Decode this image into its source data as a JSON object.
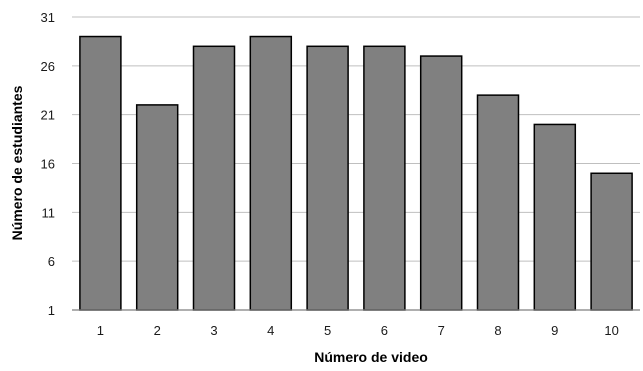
{
  "chart_data": {
    "type": "bar",
    "title": "",
    "xlabel": "Número de video",
    "ylabel": "Número de estudiantes",
    "categories": [
      "1",
      "2",
      "3",
      "4",
      "5",
      "6",
      "7",
      "8",
      "9",
      "10"
    ],
    "values": [
      29,
      22,
      28,
      29,
      28,
      28,
      27,
      23,
      20,
      15
    ],
    "ylim": [
      1,
      31
    ],
    "yticks": [
      "1",
      "6",
      "11",
      "16",
      "21",
      "26",
      "31"
    ],
    "grid": true,
    "legend": "none",
    "colors": {
      "bar_fill": "#808080",
      "bar_stroke": "#000000",
      "grid": "#bfbfbf",
      "axis": "#7f7f7f"
    }
  }
}
